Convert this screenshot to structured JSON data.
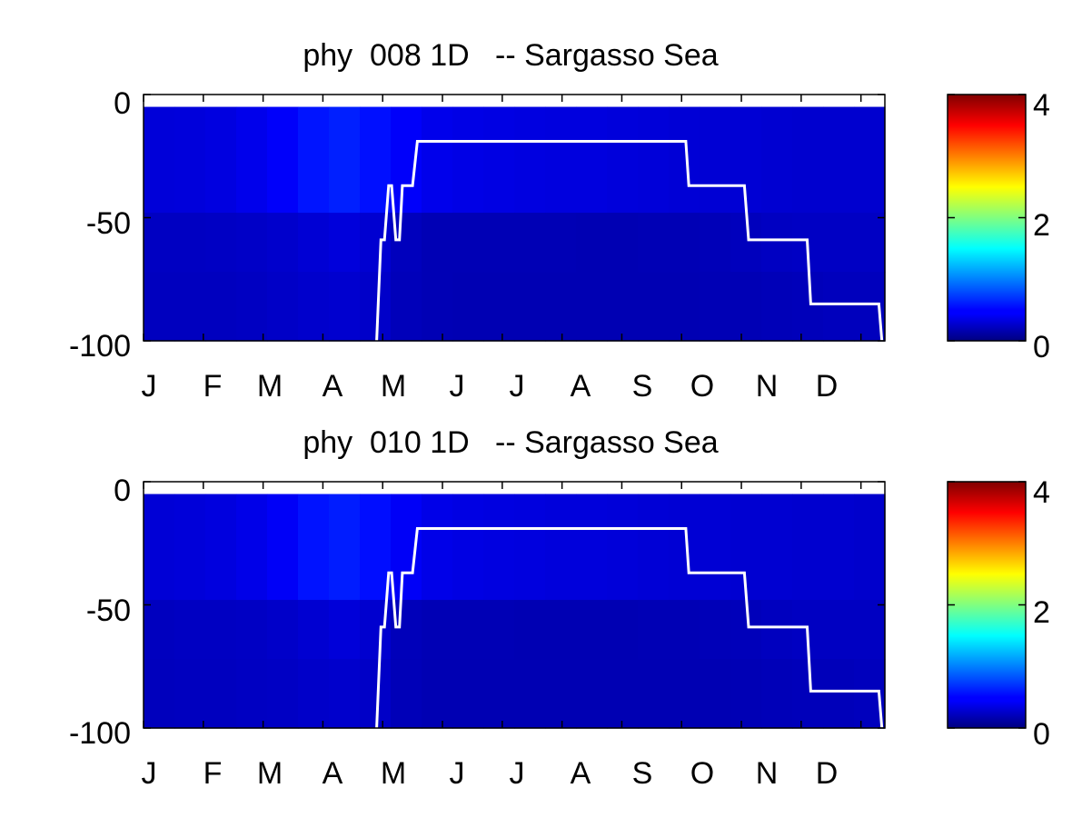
{
  "chart_data": [
    {
      "type": "heatmap",
      "title": "phy  008 1D   -- Sargasso Sea",
      "xlabel": "",
      "ylabel": "",
      "x_tick_labels": [
        "J",
        "F",
        "M",
        "A",
        "M",
        "J",
        "J",
        "A",
        "S",
        "O",
        "N",
        "D"
      ],
      "xlim": [
        0,
        12.4
      ],
      "ylim": [
        -100,
        0
      ],
      "y_ticks": [
        "0",
        "-50",
        "-100"
      ],
      "colorbar": {
        "colormap": "jet",
        "range": [
          0,
          4
        ],
        "tick_labels": [
          "4",
          "2",
          "0"
        ]
      },
      "depth_layers": [
        {
          "range": [
            0,
            -5
          ],
          "values": []
        },
        {
          "range": [
            -5,
            -48
          ],
          "values": [
            0.35,
            0.36,
            0.38,
            0.42,
            0.48,
            0.58,
            0.62,
            0.56,
            0.48,
            0.42,
            0.4,
            0.39,
            0.38,
            0.37,
            0.37,
            0.36,
            0.35,
            0.34,
            0.33,
            0.33,
            0.32,
            0.31,
            0.31,
            0.31
          ]
        },
        {
          "range": [
            -48,
            -72
          ],
          "values": [
            0.26,
            0.26,
            0.27,
            0.28,
            0.3,
            0.33,
            0.36,
            0.32,
            0.24,
            0.21,
            0.21,
            0.21,
            0.21,
            0.21,
            0.2,
            0.2,
            0.21,
            0.21,
            0.22,
            0.24,
            0.26,
            0.27,
            0.27,
            0.27
          ]
        },
        {
          "range": [
            -72,
            -100
          ],
          "values": [
            0.25,
            0.25,
            0.25,
            0.26,
            0.28,
            0.3,
            0.31,
            0.29,
            0.23,
            0.21,
            0.2,
            0.2,
            0.2,
            0.2,
            0.2,
            0.2,
            0.2,
            0.2,
            0.21,
            0.21,
            0.22,
            0.23,
            0.24,
            0.24
          ]
        }
      ],
      "mixed_layer_line": {
        "color": "#ffffff",
        "points": [
          [
            3.9,
            -100
          ],
          [
            3.97,
            -59
          ],
          [
            4.03,
            -59
          ],
          [
            4.1,
            -37
          ],
          [
            4.15,
            -37
          ],
          [
            4.22,
            -59
          ],
          [
            4.28,
            -59
          ],
          [
            4.33,
            -37
          ],
          [
            4.5,
            -37
          ],
          [
            4.58,
            -19
          ],
          [
            9.07,
            -19
          ],
          [
            9.12,
            -37
          ],
          [
            10.05,
            -37
          ],
          [
            10.12,
            -59
          ],
          [
            11.1,
            -59
          ],
          [
            11.16,
            -85
          ],
          [
            12.3,
            -85
          ],
          [
            12.35,
            -100
          ]
        ]
      }
    },
    {
      "type": "heatmap",
      "title": "phy  010 1D   -- Sargasso Sea",
      "xlabel": "",
      "ylabel": "",
      "x_tick_labels": [
        "J",
        "F",
        "M",
        "A",
        "M",
        "J",
        "J",
        "A",
        "S",
        "O",
        "N",
        "D"
      ],
      "xlim": [
        0,
        12.4
      ],
      "ylim": [
        -100,
        0
      ],
      "y_ticks": [
        "0",
        "-50",
        "-100"
      ],
      "colorbar": {
        "colormap": "jet",
        "range": [
          0,
          4
        ],
        "tick_labels": [
          "4",
          "2",
          "0"
        ]
      },
      "depth_layers": [
        {
          "range": [
            0,
            -5
          ],
          "values": []
        },
        {
          "range": [
            -5,
            -48
          ],
          "values": [
            0.34,
            0.35,
            0.37,
            0.41,
            0.47,
            0.57,
            0.61,
            0.55,
            0.47,
            0.41,
            0.39,
            0.38,
            0.37,
            0.36,
            0.36,
            0.35,
            0.34,
            0.33,
            0.33,
            0.32,
            0.32,
            0.31,
            0.31,
            0.3
          ]
        },
        {
          "range": [
            -48,
            -72
          ],
          "values": [
            0.25,
            0.26,
            0.26,
            0.27,
            0.29,
            0.32,
            0.35,
            0.31,
            0.23,
            0.21,
            0.21,
            0.21,
            0.2,
            0.2,
            0.2,
            0.2,
            0.21,
            0.21,
            0.22,
            0.23,
            0.25,
            0.26,
            0.26,
            0.26
          ]
        },
        {
          "range": [
            -72,
            -100
          ],
          "values": [
            0.24,
            0.25,
            0.25,
            0.26,
            0.27,
            0.29,
            0.3,
            0.28,
            0.22,
            0.2,
            0.2,
            0.2,
            0.2,
            0.2,
            0.2,
            0.2,
            0.2,
            0.2,
            0.2,
            0.21,
            0.22,
            0.23,
            0.23,
            0.24
          ]
        }
      ],
      "mixed_layer_line": {
        "color": "#ffffff",
        "points": [
          [
            3.9,
            -100
          ],
          [
            3.97,
            -59
          ],
          [
            4.03,
            -59
          ],
          [
            4.1,
            -37
          ],
          [
            4.15,
            -37
          ],
          [
            4.22,
            -59
          ],
          [
            4.28,
            -59
          ],
          [
            4.33,
            -37
          ],
          [
            4.5,
            -37
          ],
          [
            4.58,
            -19
          ],
          [
            9.07,
            -19
          ],
          [
            9.12,
            -37
          ],
          [
            10.05,
            -37
          ],
          [
            10.12,
            -59
          ],
          [
            11.1,
            -59
          ],
          [
            11.16,
            -85
          ],
          [
            12.3,
            -85
          ],
          [
            12.35,
            -100
          ]
        ]
      }
    }
  ]
}
